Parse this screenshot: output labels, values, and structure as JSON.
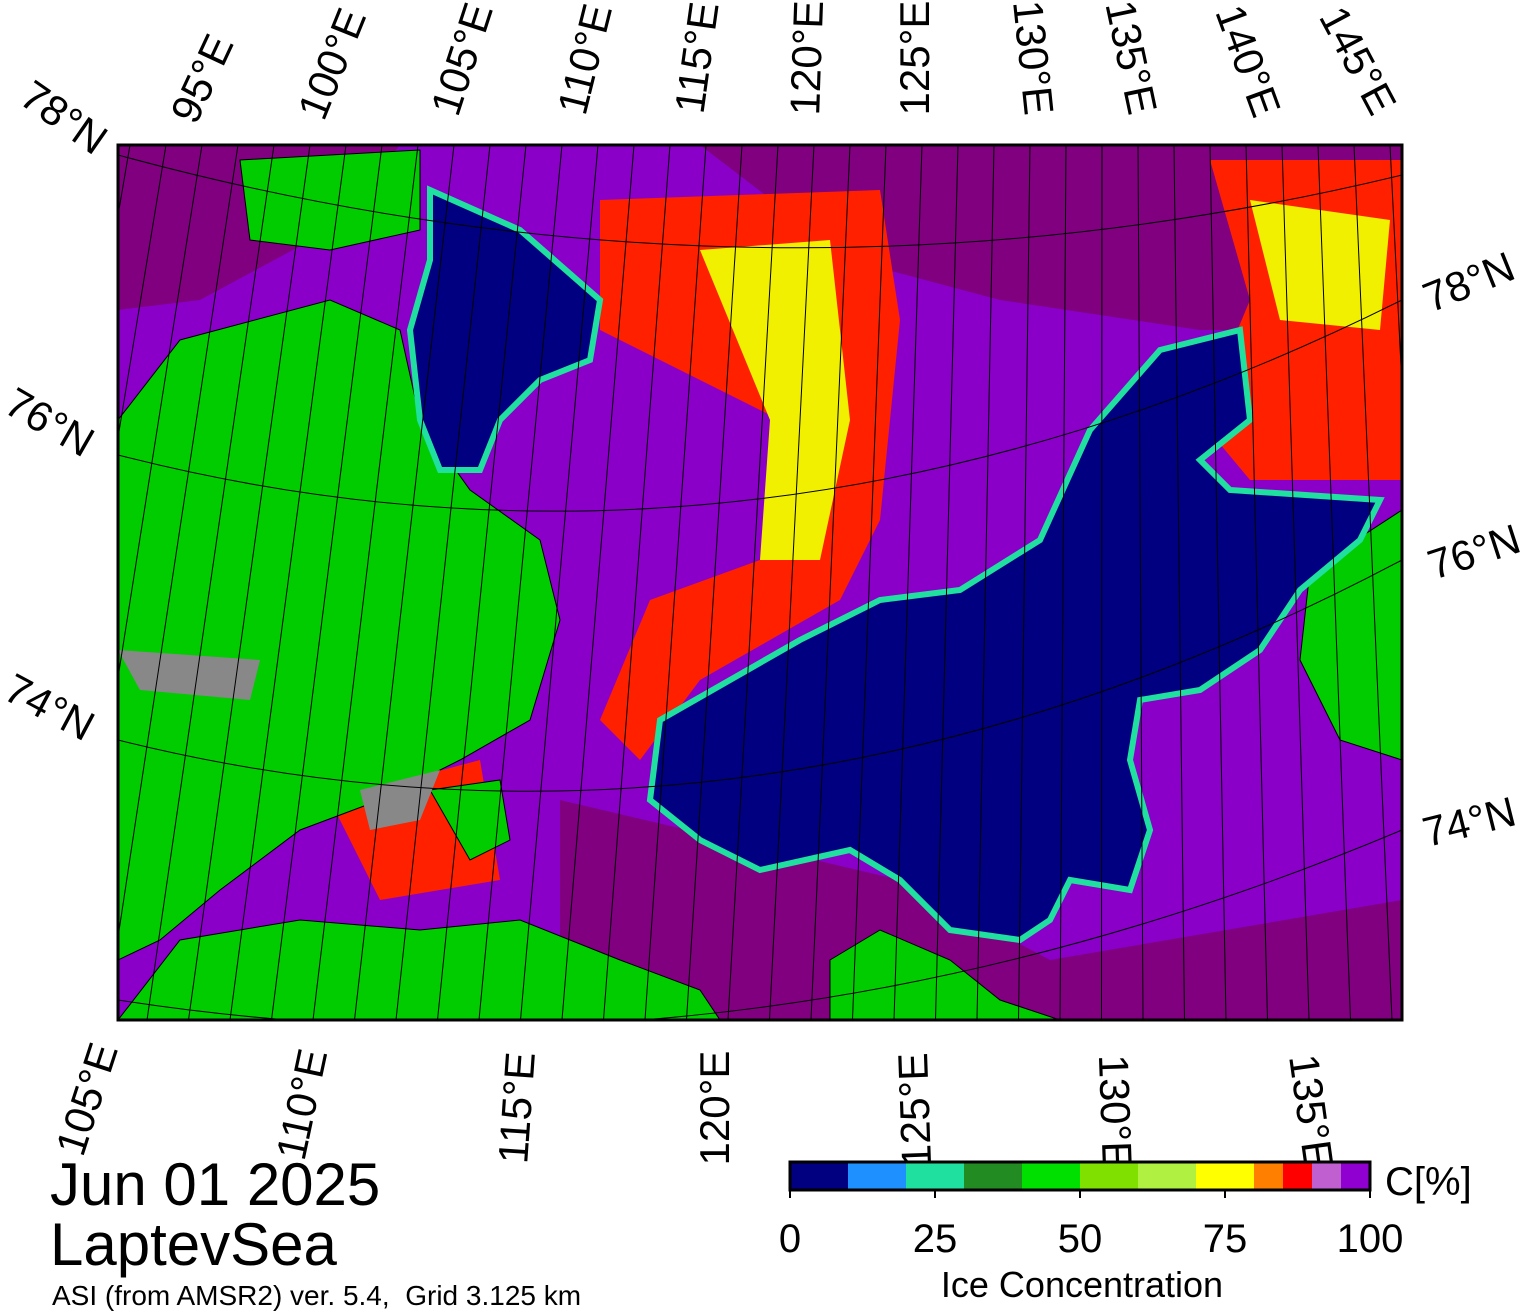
{
  "map": {
    "top_labels": [
      "78°N",
      "95°E",
      "100°E",
      "105°E",
      "110°E",
      "115°E",
      "120°E",
      "125°E",
      "130°E",
      "135°E",
      "140°E",
      "145°E"
    ],
    "left_labels": [
      "76°N",
      "74°N"
    ],
    "right_labels": [
      "78°N",
      "76°N",
      "74°N"
    ],
    "bottom_labels": [
      "105°E",
      "110°E",
      "115°E",
      "120°E",
      "125°E",
      "130°E",
      "135°E"
    ],
    "date": "Jun 01 2025",
    "region": "LaptevSea",
    "source": "ASI (from AMSR2) ver. 5.4,  Grid 3.125 km"
  },
  "colorbar": {
    "bounds": [
      0,
      10,
      20,
      30,
      40,
      50,
      60,
      70,
      80,
      85,
      90,
      95,
      100
    ],
    "colors": [
      "#000080",
      "#1e90ff",
      "#20e0a0",
      "#228b22",
      "#00e000",
      "#80e000",
      "#b0f040",
      "#ffff00",
      "#ff8000",
      "#ff0000",
      "#c060d0",
      "#9000d0"
    ],
    "ticks": [
      0,
      25,
      50,
      75,
      100
    ],
    "unit": "C[%]",
    "label": "Ice Concentration"
  }
}
